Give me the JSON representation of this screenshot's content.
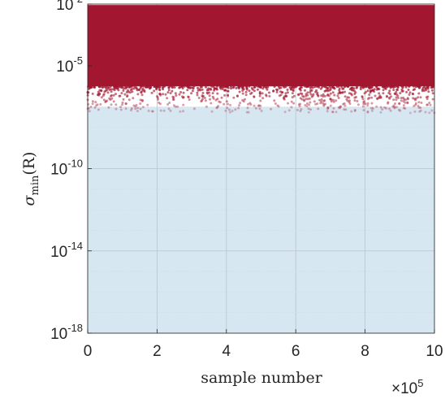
{
  "chart_data": {
    "type": "scatter",
    "xlabel": "sample number",
    "ylabel": {
      "symbol": "σ",
      "subscript": "min",
      "arg": "(R)"
    },
    "x_multiplier": {
      "base": "×10",
      "exp": "5"
    },
    "xlim": [
      0,
      10
    ],
    "ylim": [
      1e-18,
      0.01
    ],
    "yscale": "log",
    "xticks": [
      "0",
      "2",
      "4",
      "6",
      "8",
      "10"
    ],
    "yticks": [
      {
        "base": "10",
        "exp": "-2",
        "value": 0.01
      },
      {
        "base": "10",
        "exp": "-5",
        "value": 1e-05
      },
      {
        "base": "10",
        "exp": "-10",
        "value": 1e-10
      },
      {
        "base": "10",
        "exp": "-14",
        "value": 1e-14
      },
      {
        "base": "10",
        "exp": "-18",
        "value": 1e-18
      }
    ],
    "grid": true,
    "series": [
      {
        "values_description_free": true,
        "color": "#a3162f",
        "x_range": [
          0,
          10
        ],
        "y_band_top": 0.009,
        "y_band_solid_bottom": 1e-06,
        "y_min_scatter": 5e-08
      }
    ],
    "fill_region": {
      "color": "#d6e7f2",
      "y_from": 1e-18,
      "y_to": 1e-07
    }
  },
  "colors": {
    "axes_bg": "#ffffff",
    "fill": "#d6e7f2",
    "points": "#a3162f",
    "text": "#262626"
  }
}
